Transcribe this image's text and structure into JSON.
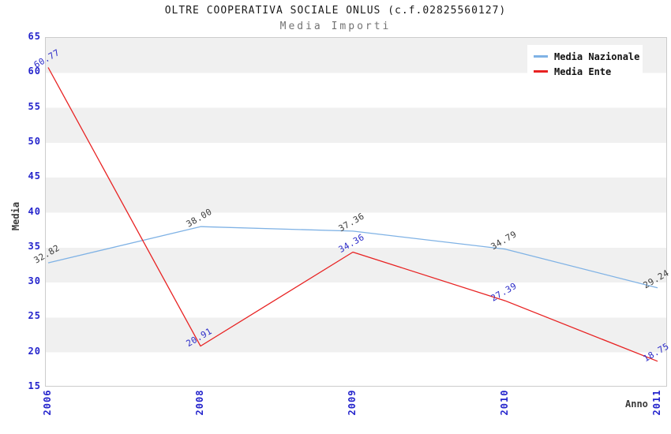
{
  "header": {
    "title": "OLTRE COOPERATIVA SOCIALE ONLUS (c.f.02825560127)",
    "subtitle": "Media Importi"
  },
  "axes": {
    "y_title": "Media",
    "x_title": "Anno",
    "y_ticks": [
      "65",
      "60",
      "55",
      "50",
      "45",
      "40",
      "35",
      "30",
      "25",
      "20",
      "15"
    ],
    "x_ticks": [
      "2006",
      "2008",
      "2009",
      "2010",
      "2011"
    ],
    "tick_color": "#2424cc"
  },
  "chart_data": {
    "type": "line",
    "title": "OLTRE COOPERATIVA SOCIALE ONLUS (c.f.02825560127)",
    "subtitle": "Media Importi",
    "xlabel": "Anno",
    "ylabel": "Media",
    "categories": [
      "2006",
      "2008",
      "2009",
      "2010",
      "2011"
    ],
    "series": [
      {
        "name": "Media Nazionale",
        "color": "#7fb2e5",
        "label_color": "#3c3c3c",
        "values": [
          32.82,
          38.0,
          37.36,
          34.79,
          29.24
        ],
        "labels": [
          "32.82",
          "38.00",
          "37.36",
          "34.79",
          "29.24"
        ]
      },
      {
        "name": "Media Ente",
        "color": "#e82222",
        "label_color": "#2b2bc8",
        "values": [
          60.77,
          20.91,
          34.36,
          27.39,
          18.75
        ],
        "labels": [
          "60.77",
          "20.91",
          "34.36",
          "27.39",
          "18.75"
        ]
      }
    ],
    "ylim": [
      15,
      65
    ],
    "ytick_step": 5,
    "grid": "horizontal-bands",
    "band_color": "#f0f0f0",
    "plot_border_color": "#cccccc",
    "legend_position": "top-right"
  }
}
